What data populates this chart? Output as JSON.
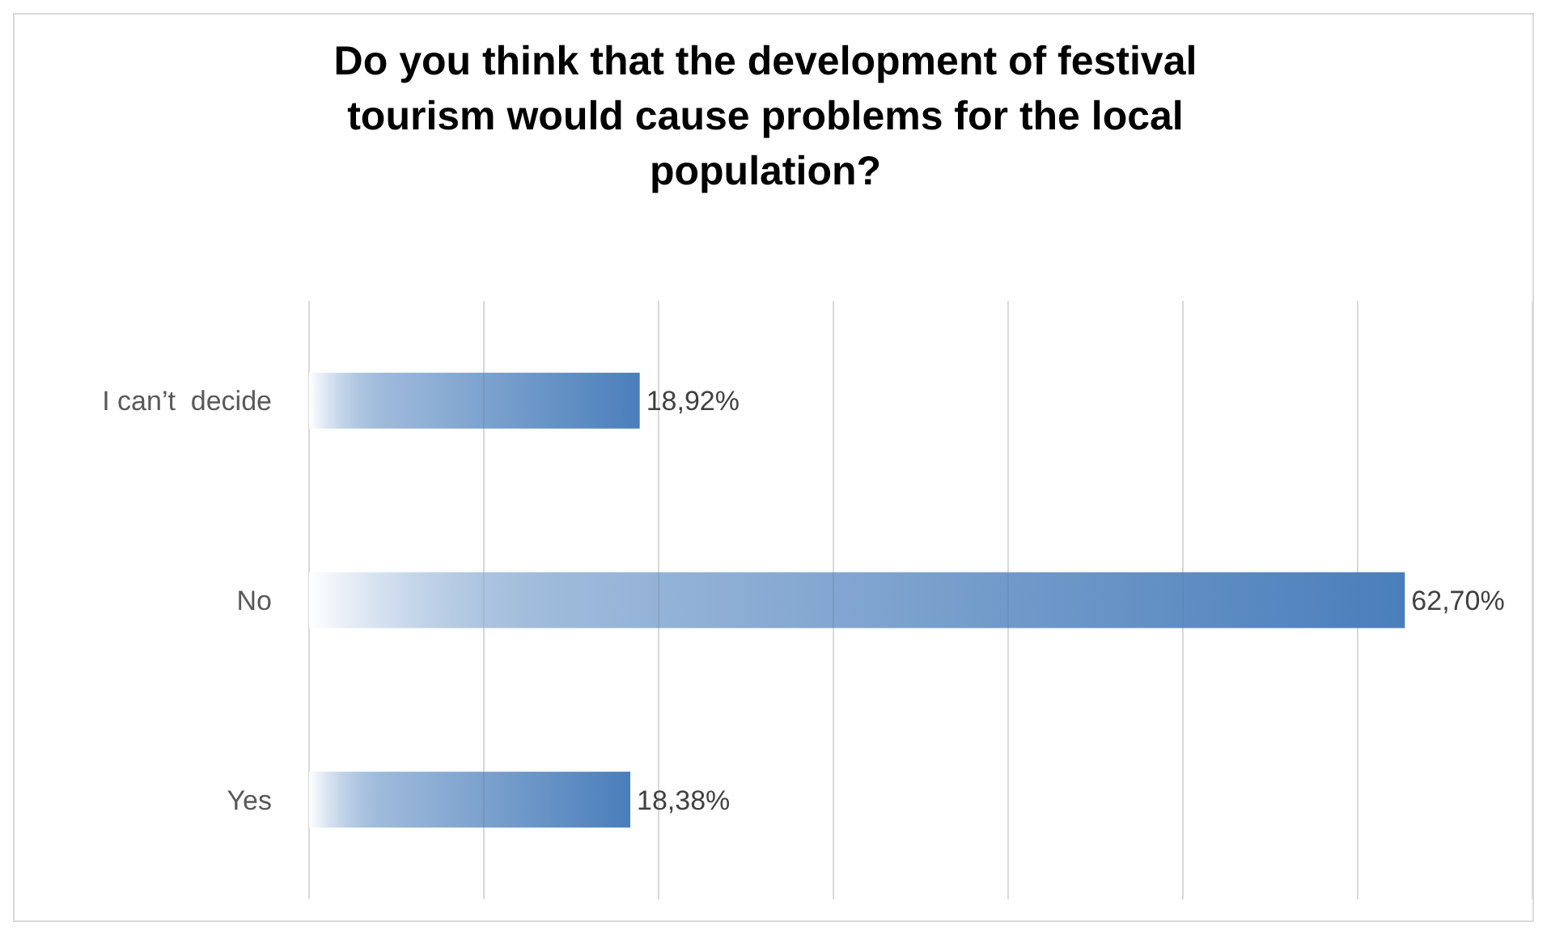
{
  "chart_data": {
    "type": "bar",
    "orientation": "horizontal",
    "title": "Do you think that the development of festival tourism would cause problems for the local population?",
    "categories": [
      "I can’t  decide",
      "No",
      "Yes"
    ],
    "values": [
      18.92,
      62.7,
      18.38
    ],
    "value_labels": [
      "18,92%",
      "62,70%",
      "18,38%"
    ],
    "color": "#4a7ebb",
    "xlim": [
      0,
      70
    ],
    "xticks": [
      {
        "value": 0,
        "label": null
      },
      {
        "value": 10,
        "label": null
      },
      {
        "value": 20,
        "label": null
      },
      {
        "value": 30,
        "label": null
      },
      {
        "value": 40,
        "label": null
      },
      {
        "value": 50,
        "label": null
      },
      {
        "value": 60,
        "label": null
      },
      {
        "value": 70,
        "label": null
      }
    ],
    "grid": "x",
    "tick_labels": "y"
  }
}
